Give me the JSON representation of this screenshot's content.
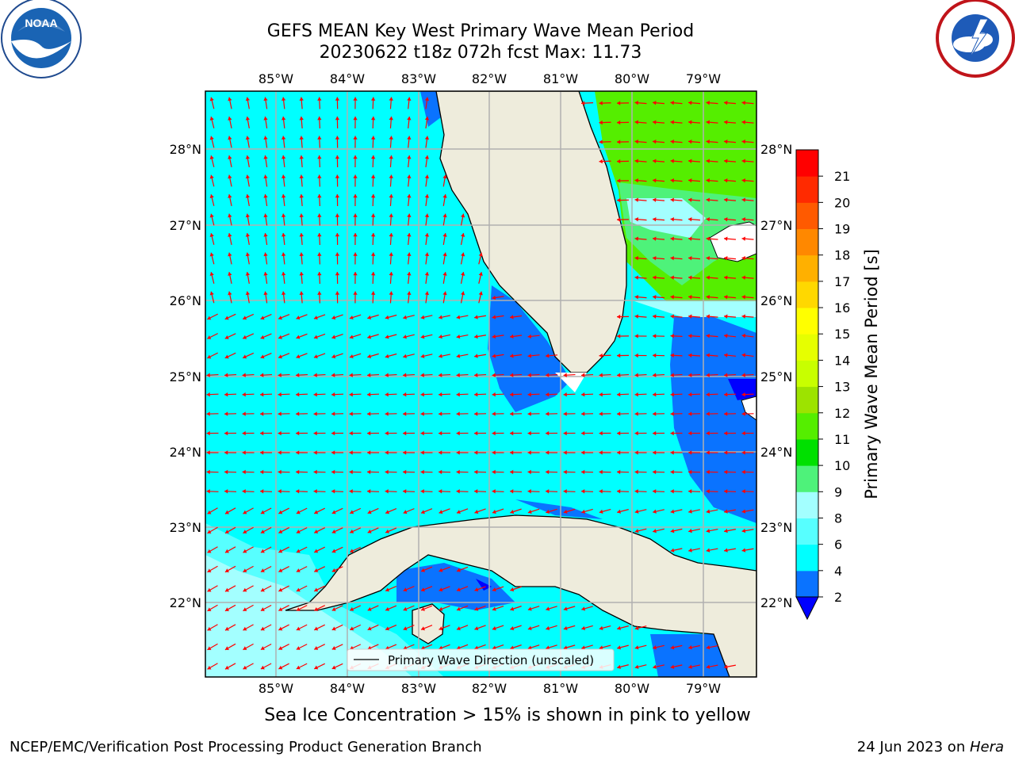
{
  "title": {
    "line1": "GEFS MEAN Key West Primary Wave Mean Period",
    "line2": "20230622 t18z 072h fcst   Max: 11.73"
  },
  "logos": {
    "noaa": "NOAA",
    "nws": "NATIONAL WEATHER SERVICE"
  },
  "map": {
    "lon_labels": [
      "85°W",
      "84°W",
      "83°W",
      "82°W",
      "81°W",
      "80°W",
      "79°W"
    ],
    "lat_labels": [
      "28°N",
      "27°N",
      "26°N",
      "25°N",
      "24°N",
      "23°N",
      "22°N"
    ],
    "lon_range": [
      -86.0,
      -78.25
    ],
    "lat_range": [
      21.1,
      28.75
    ],
    "legend_label": "Primary Wave Direction (unscaled)",
    "arrow_color": "#ff0000",
    "land_color": "#eeecdc",
    "grid": true
  },
  "colorbar": {
    "label": "Primary Wave Mean Period [s]",
    "ticks": [
      "2",
      "4",
      "6",
      "8",
      "9",
      "10",
      "11",
      "12",
      "13",
      "14",
      "15",
      "16",
      "17",
      "18",
      "19",
      "20",
      "21"
    ],
    "levels": [
      2,
      4,
      6,
      8,
      9,
      10,
      11,
      12,
      13,
      14,
      15,
      16,
      17,
      18,
      19,
      20,
      21
    ],
    "colors": [
      "#0a73ff",
      "#00ffff",
      "#57ffff",
      "#a3ffff",
      "#4ef27a",
      "#00e000",
      "#55ee00",
      "#9de300",
      "#c8ff00",
      "#e6ff00",
      "#ffff00",
      "#ffd800",
      "#ffb000",
      "#ff8800",
      "#ff5a00",
      "#ff2a00",
      "#ff0000"
    ],
    "under_color": "#0000ff"
  },
  "footer": {
    "ice_note": "Sea Ice Concentration > 15% is shown in pink to yellow",
    "left": "NCEP/EMC/Verification Post Processing Product Generation Branch",
    "right_date": "24 Jun 2023 on ",
    "right_machine": "Hera"
  }
}
